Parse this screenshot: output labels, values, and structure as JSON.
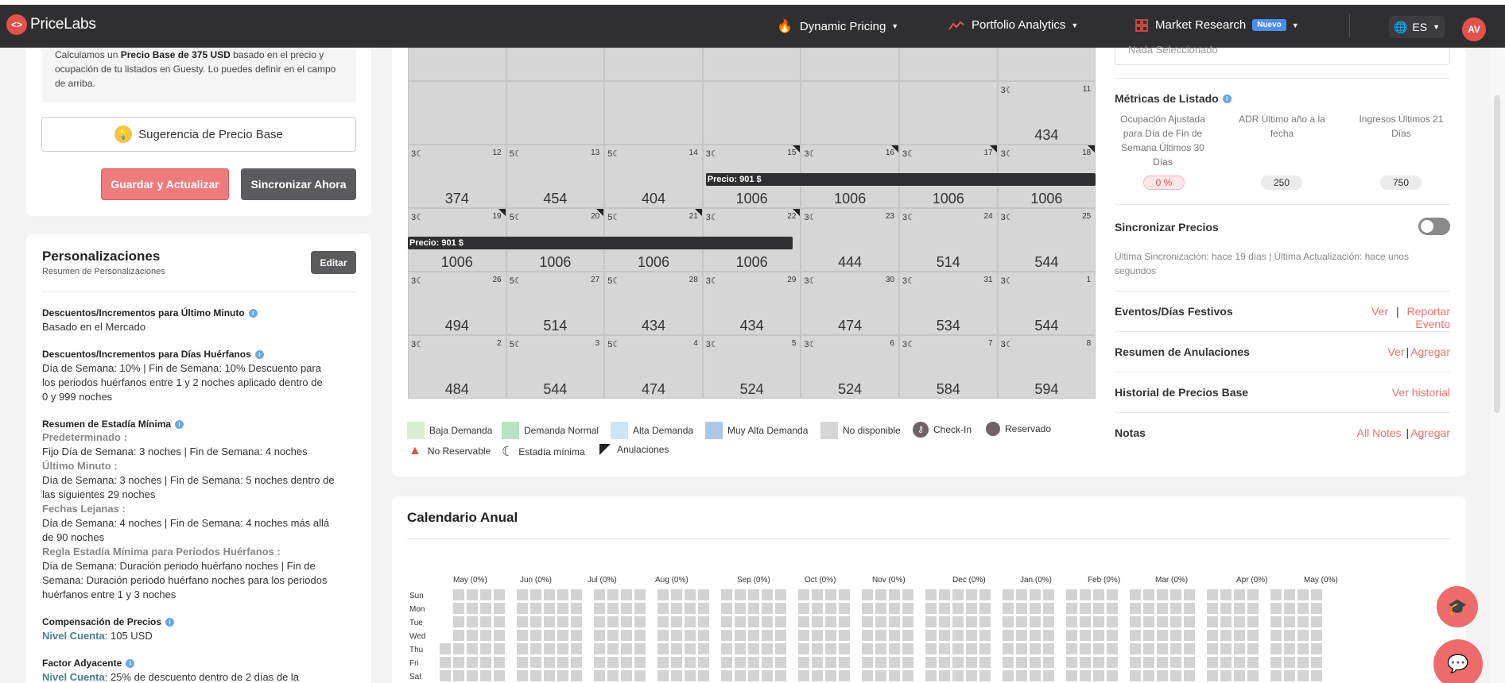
{
  "nav": {
    "logo_mark": "<>",
    "brand": "PriceLabs",
    "dynamic_pricing": "Dynamic Pricing",
    "portfolio_analytics": "Portfolio Analytics",
    "market_research": "Market Research",
    "new_badge": "Nuevo",
    "lang": "ES",
    "avatar": "AV"
  },
  "left": {
    "info_pre": "Calculamos un ",
    "info_bold": "Precio Base de 375 USD",
    "info_line1_rest": " basado en el precio y",
    "info_line2": "ocupación de tu listados en Guesty. Lo puedes definir en el campo",
    "info_line3": "de arriba.",
    "suggest_button": "Sugerencia de Precio Base",
    "save_button": "Guardar y Actualizar",
    "sync_button": "Sincronizar Ahora",
    "pers_title": "Personalizaciones",
    "pers_sub": "Resumen de Personalizaciones",
    "edit_button": "Editar",
    "s1_h": "Descuentos/Incrementos para Último Minuto",
    "s1_t": "Basado en el Mercado",
    "s2_h": "Descuentos/Incrementos para Días Huérfanos",
    "s2_t1": "Día de Semana: 10% | Fin de Semana: 10% Descuento para",
    "s2_t2": "los periodos huérfanos entre 1 y 2 noches aplicado dentro de",
    "s2_t3": "0 y 999 noches",
    "s3_h": "Resumen de Estadía Mínima",
    "s3_g1": "Predeterminado :",
    "s3_t1": "Fijo Día de Semana: 3 noches | Fin de Semana: 4 noches",
    "s3_g2": "Último Minuto :",
    "s3_t2": "Día de Semana: 3 noches | Fin de Semana: 5 noches dentro de",
    "s3_t3": "las siguientes 29 noches",
    "s3_g3": "Fechas Lejanas :",
    "s3_t4": "Día de Semana: 4 noches | Fin de Semana: 4 noches más allá",
    "s3_t5": "de 90 noches",
    "s3_g4": "Regla Estadía Mínima para Periodos Huérfanos :",
    "s3_t6": "Día de Semana: Duración periodo huérfano noches | Fin de",
    "s3_t7": "Semana: Duración periodo huérfano noches para los periodos",
    "s3_t8": "huérfanos entre 1 y 3 noches",
    "s4_h": "Compensación de Precios",
    "s4_label": "Nivel Cuenta",
    "s4_val": ": 105 USD",
    "s5_h": "Factor Adyacente",
    "s5_label": "Nivel Cuenta",
    "s5_val": ": 25% de descuento dentro de 2 días de la"
  },
  "calendar": {
    "price_bar_1": "Precio: 901 $",
    "price_bar_2": "Precio: 901 $",
    "rows": [
      [
        {
          "ms": "",
          "day": "",
          "price": ""
        },
        {
          "ms": "",
          "day": "",
          "price": ""
        },
        {
          "ms": "",
          "day": "",
          "price": ""
        },
        {
          "ms": "",
          "day": "",
          "price": ""
        },
        {
          "ms": "",
          "day": "",
          "price": ""
        },
        {
          "ms": "",
          "day": "",
          "price": ""
        },
        {
          "ms": "",
          "day": "",
          "price": ""
        }
      ],
      [
        {
          "ms": "",
          "day": "",
          "price": ""
        },
        {
          "ms": "",
          "day": "",
          "price": ""
        },
        {
          "ms": "",
          "day": "",
          "price": ""
        },
        {
          "ms": "",
          "day": "",
          "price": ""
        },
        {
          "ms": "",
          "day": "",
          "price": ""
        },
        {
          "ms": "",
          "day": "",
          "price": ""
        },
        {
          "ms": "3☾",
          "day": "11",
          "price": "434"
        }
      ],
      [
        {
          "ms": "3☾",
          "day": "12",
          "price": "374"
        },
        {
          "ms": "5☾",
          "day": "13",
          "price": "454"
        },
        {
          "ms": "5☾",
          "day": "14",
          "price": "404"
        },
        {
          "ms": "3☾",
          "day": "15",
          "price": "1006",
          "c": 1
        },
        {
          "ms": "3☾",
          "day": "16",
          "price": "1006",
          "c": 1
        },
        {
          "ms": "3☾",
          "day": "17",
          "price": "1006",
          "c": 1
        },
        {
          "ms": "3☾",
          "day": "18",
          "price": "1006",
          "c": 1
        }
      ],
      [
        {
          "ms": "3☾",
          "day": "19",
          "price": "1006",
          "c": 1
        },
        {
          "ms": "5☾",
          "day": "20",
          "price": "1006",
          "c": 1
        },
        {
          "ms": "5☾",
          "day": "21",
          "price": "1006",
          "c": 1
        },
        {
          "ms": "3☾",
          "day": "22",
          "price": "1006",
          "c": 1
        },
        {
          "ms": "3☾",
          "day": "23",
          "price": "444"
        },
        {
          "ms": "3☾",
          "day": "24",
          "price": "514"
        },
        {
          "ms": "3☾",
          "day": "25",
          "price": "544"
        }
      ],
      [
        {
          "ms": "3☾",
          "day": "26",
          "price": "494"
        },
        {
          "ms": "5☾",
          "day": "27",
          "price": "514"
        },
        {
          "ms": "5☾",
          "day": "28",
          "price": "434"
        },
        {
          "ms": "3☾",
          "day": "29",
          "price": "434"
        },
        {
          "ms": "3☾",
          "day": "30",
          "price": "474"
        },
        {
          "ms": "3☾",
          "day": "31",
          "price": "534"
        },
        {
          "ms": "3☾",
          "day": "1",
          "price": "544"
        }
      ],
      [
        {
          "ms": "3☾",
          "day": "2",
          "price": "484"
        },
        {
          "ms": "5☾",
          "day": "3",
          "price": "544"
        },
        {
          "ms": "5☾",
          "day": "4",
          "price": "474"
        },
        {
          "ms": "3☾",
          "day": "5",
          "price": "524"
        },
        {
          "ms": "3☾",
          "day": "6",
          "price": "524"
        },
        {
          "ms": "3☾",
          "day": "7",
          "price": "584"
        },
        {
          "ms": "3☾",
          "day": "8",
          "price": "594"
        }
      ]
    ],
    "legend": {
      "low": "Baja Demanda",
      "normal": "Demanda Normal",
      "high": "Alta Demanda",
      "vhigh": "Muy Alta Demanda",
      "na": "No disponible",
      "checkin": "Check-In",
      "booked": "Reservado",
      "noreserve": "No Reservable",
      "minstay": "Estadía mínima",
      "cancel": "Anulaciones"
    },
    "colors": {
      "low": "#d8f0cf",
      "normal": "#b6e3c1",
      "high": "#cde6f7",
      "vhigh": "#a8c8e6",
      "na": "#d6d6d6",
      "booked": "#6e6266",
      "alert": "#e2524b"
    }
  },
  "right": {
    "select_placeholder": "Nada Seleccionado",
    "metrics_title": "Métricas de Listado",
    "m1_h1": "Ocupación Ajustada",
    "m1_h2": "para Día de Fin de",
    "m1_h3": "Semana Últimos 30",
    "m1_h4": "Días",
    "m1_v": "0 %",
    "m2_h1": "ADR Último año a la",
    "m2_h2": "fecha",
    "m2_v": "250",
    "m3_h1": "Ingresos Últimos 21",
    "m3_h2": "Días",
    "m3_v": "750",
    "sync_title": "Sincronizar Precios",
    "sync_t1": "Última Sincronización: hace 19 días | Última Actualización: hace unos",
    "sync_t2": "segundos",
    "events_title": "Eventos/Días Festivos",
    "events_ver": "Ver",
    "events_sep": "|",
    "events_report": "Reportar Evento",
    "cancel_title": "Resumen de Anulaciones",
    "cancel_ver": "Ver",
    "cancel_sep": "|",
    "cancel_add": "Agregar",
    "hist_title": "Historial de Precios Base",
    "hist_link": "Ver historial",
    "notes_title": "Notas",
    "notes_all": "All Notes",
    "notes_sep": "|",
    "notes_add": "Agregar"
  },
  "annual": {
    "title": "Calendario Anual",
    "months": [
      "May (0%)",
      "Jun (0%)",
      "Jul (0%)",
      "Aug (0%)",
      "Sep (0%)",
      "Oct (0%)",
      "Nov (0%)",
      "Dec (0%)",
      "Jan (0%)",
      "Feb (0%)",
      "Mar (0%)",
      "Apr (0%)",
      "May (0%)"
    ],
    "days": [
      "Sun",
      "Mon",
      "Tue",
      "Wed",
      "Thu",
      "Fri",
      "Sat"
    ]
  }
}
